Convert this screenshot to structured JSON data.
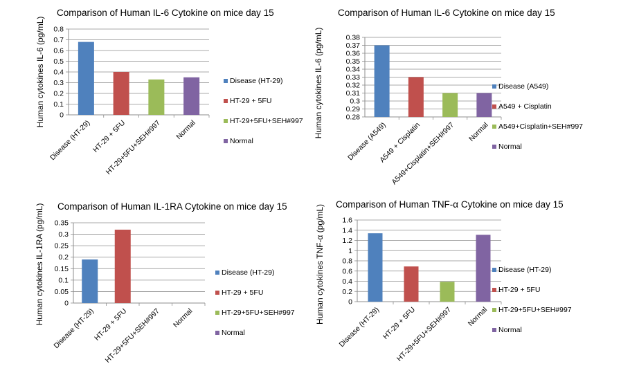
{
  "colors": {
    "series1": "#4f81bd",
    "series2": "#c0504d",
    "series3": "#9bbb59",
    "series4": "#8064a2"
  },
  "chart_data": [
    {
      "type": "bar",
      "title": "Comparison of Human IL-6 Cytokine on mice day 15",
      "ylabel": "Human cytokines IL-6 (pg/mL)",
      "xlabel": "",
      "categories": [
        "Disease (HT-29)",
        "HT-29 + 5FU",
        "HT-29+5FU+SEH#997",
        "Normal"
      ],
      "values": [
        0.68,
        0.4,
        0.33,
        0.35
      ],
      "ylim": [
        0,
        0.8
      ],
      "yticks": [
        "0",
        "0.1",
        "0.2",
        "0.3",
        "0.4",
        "0.5",
        "0.6",
        "0.7",
        "0.8"
      ],
      "legend": [
        "Disease (HT-29)",
        "HT-29 + 5FU",
        "HT-29+5FU+SEH#997",
        "Normal"
      ],
      "legend_position": "right",
      "grid": true
    },
    {
      "type": "bar",
      "title": "Comparison of Human IL-6 Cytokine on mice day 15",
      "ylabel": "Human cytokines IL-6 (pg/mL)",
      "xlabel": "",
      "categories": [
        "Disease (A549)",
        "A549 + Cisplatin",
        "A549+Cisplatin+SEH#997",
        "Normal"
      ],
      "values": [
        0.37,
        0.33,
        0.31,
        0.31
      ],
      "ylim": [
        0.28,
        0.38
      ],
      "yticks": [
        "0.28",
        "0.29",
        "0.3",
        "0.31",
        "0.32",
        "0.33",
        "0.34",
        "0.35",
        "0.36",
        "0.37",
        "0.38"
      ],
      "legend": [
        "Disease (A549)",
        "A549 + Cisplatin",
        "A549+Cisplatin+SEH#997",
        "Normal"
      ],
      "legend_position": "right",
      "grid": true
    },
    {
      "type": "bar",
      "title": "Comparison of Human IL-1RA Cytokine on mice day 15",
      "ylabel": "Human cytokines IL-1RA (pg/mL)",
      "xlabel": "",
      "categories": [
        "Disease (HT-29)",
        "HT-29 + 5FU",
        "HT-29+5FU+SEH#997",
        "Normal"
      ],
      "values": [
        0.19,
        0.32,
        0,
        0
      ],
      "ylim": [
        0,
        0.35
      ],
      "yticks": [
        "0",
        "0.05",
        "0.1",
        "0.15",
        "0.2",
        "0.25",
        "0.3",
        "0.35"
      ],
      "legend": [
        "Disease (HT-29)",
        "HT-29 + 5FU",
        "HT-29+5FU+SEH#997",
        "Normal"
      ],
      "legend_position": "right",
      "grid": true
    },
    {
      "type": "bar",
      "title": "Comparison of Human TNF-α Cytokine on mice day 15",
      "ylabel": "Human cytokines TNF-α (pg/mL)",
      "xlabel": "",
      "categories": [
        "Disease (HT-29)",
        "HT-29 + 5FU",
        "HT-29+5FU+SEH#997",
        "Normal"
      ],
      "values": [
        1.34,
        0.69,
        0.39,
        1.31
      ],
      "ylim": [
        0,
        1.6
      ],
      "yticks": [
        "0",
        "0.2",
        "0.4",
        "0.6",
        "0.8",
        "1",
        "1.2",
        "1.4",
        "1.6"
      ],
      "legend": [
        "Disease (HT-29)",
        "HT-29 + 5FU",
        "HT-29+5FU+SEH#997",
        "Normal"
      ],
      "legend_position": "right",
      "grid": true
    }
  ]
}
